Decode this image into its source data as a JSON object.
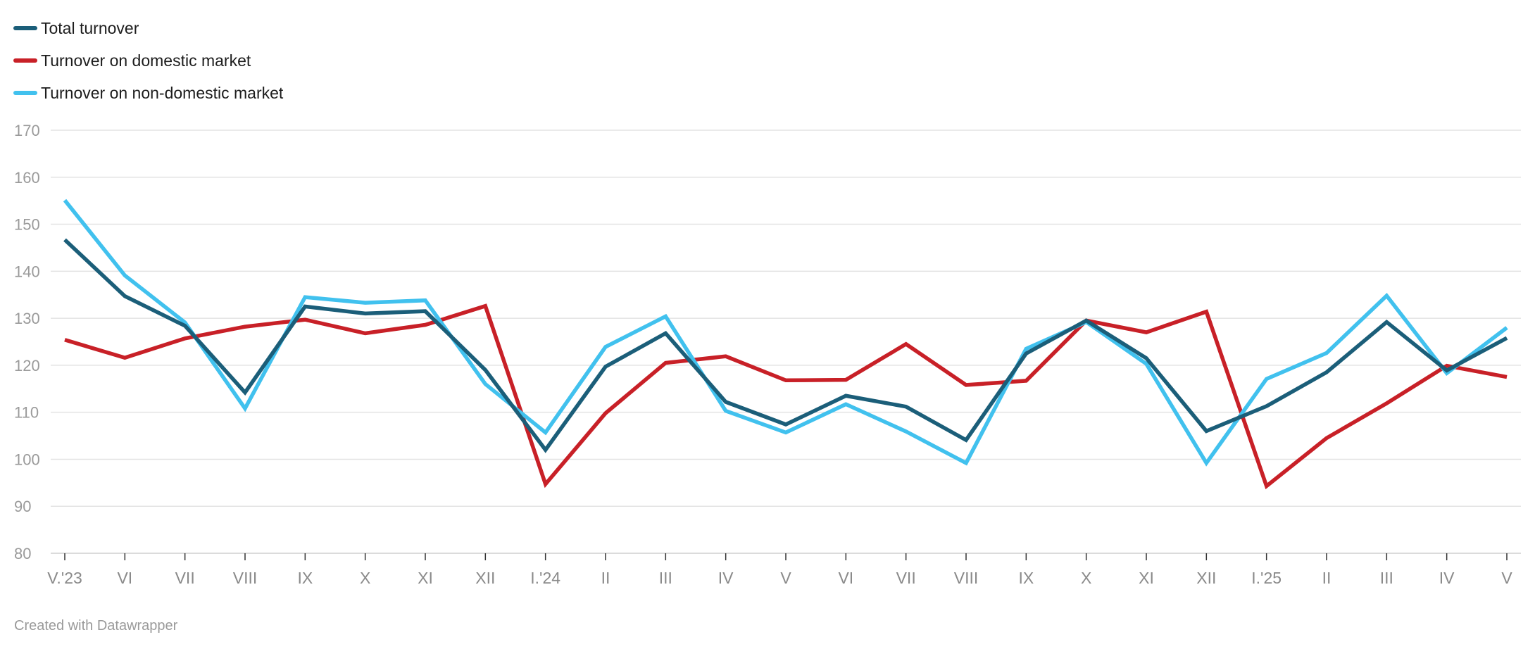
{
  "chart_data": {
    "type": "line",
    "title": "",
    "xlabel": "",
    "ylabel": "",
    "categories": [
      "V.'23",
      "VI",
      "VII",
      "VIII",
      "IX",
      "X",
      "XI",
      "XII",
      "I.'24",
      "II",
      "III",
      "IV",
      "V",
      "VI",
      "VII",
      "VIII",
      "IX",
      "X",
      "XI",
      "XII",
      "I.'25",
      "II",
      "III",
      "IV",
      "V"
    ],
    "ylim": [
      80,
      170
    ],
    "yticks": [
      "80",
      "90",
      "100",
      "110",
      "120",
      "130",
      "140",
      "150",
      "160",
      "170"
    ],
    "grid": true,
    "legend_position": "top-left",
    "series": [
      {
        "name": "Total turnover",
        "color": "#1b5e79",
        "values": [
          146.7,
          134.7,
          128.4,
          114.2,
          132.5,
          131.0,
          131.5,
          119.0,
          102.0,
          119.7,
          126.8,
          112.2,
          107.4,
          113.5,
          111.2,
          104.1,
          122.5,
          129.5,
          121.5,
          106.0,
          111.3,
          118.5,
          129.2,
          118.9,
          125.8
        ]
      },
      {
        "name": "Turnover on domestic market",
        "color": "#c82027",
        "values": [
          125.4,
          121.6,
          125.7,
          128.2,
          129.7,
          126.8,
          128.6,
          132.6,
          94.7,
          109.8,
          120.5,
          121.9,
          116.8,
          116.9,
          124.5,
          115.8,
          116.7,
          129.5,
          127.0,
          131.4,
          94.3,
          104.5,
          111.9,
          119.9,
          117.5
        ]
      },
      {
        "name": "Turnover on non-domestic market",
        "color": "#41c1ee",
        "values": [
          155.1,
          139.1,
          129.1,
          110.8,
          134.5,
          133.3,
          133.8,
          116.0,
          105.7,
          123.9,
          130.4,
          110.3,
          105.7,
          111.7,
          105.9,
          99.2,
          123.5,
          129.2,
          120.3,
          99.2,
          117.1,
          122.6,
          134.8,
          118.3,
          128.0
        ]
      }
    ]
  },
  "footer": {
    "credit": "Created with Datawrapper"
  }
}
